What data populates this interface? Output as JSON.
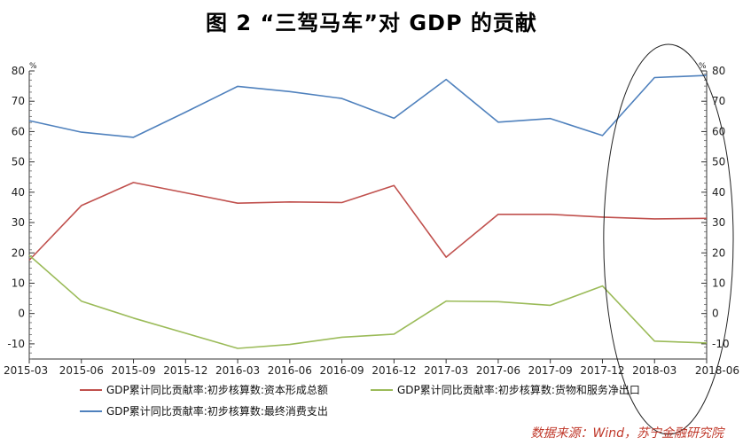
{
  "chart_data": {
    "type": "line",
    "title": "图 2 “三驾马车”对 GDP 的贡献",
    "unit_left": "%",
    "unit_right": "%",
    "categories": [
      "2015-03",
      "2015-06",
      "2015-09",
      "2015-12",
      "2016-03",
      "2016-06",
      "2016-09",
      "2016-12",
      "2017-03",
      "2017-06",
      "2017-09",
      "2017-12",
      "2018-03",
      "2018-06"
    ],
    "ylim": [
      -15,
      80
    ],
    "yticks": [
      80,
      70,
      60,
      50,
      40,
      30,
      20,
      10,
      0,
      -10
    ],
    "ytick_labels": [
      "80",
      "70",
      "60",
      "50",
      "40",
      "30",
      "20",
      "10",
      "0",
      "-10"
    ],
    "series": [
      {
        "name": "GDP累计同比贡献率:初步核算数:资本形成总额",
        "color": "#c0504d",
        "values": [
          17.6,
          35.6,
          43.2,
          39.8,
          36.4,
          36.8,
          36.6,
          42.2,
          18.6,
          32.7,
          32.7,
          31.8,
          31.2,
          31.4
        ]
      },
      {
        "name": "GDP累计同比贡献率:初步核算数:货物和服务净出口",
        "color": "#9bbb59",
        "values": [
          19.2,
          4.1,
          -1.5,
          -6.5,
          -11.5,
          -10.2,
          -7.8,
          -6.8,
          4.1,
          3.9,
          2.7,
          9.1,
          -9.1,
          -9.7
        ]
      },
      {
        "name": "GDP累计同比贡献率:初步核算数:最终消费支出",
        "color": "#4f81bd",
        "values": [
          63.6,
          59.8,
          58.1,
          66.4,
          74.9,
          73.2,
          70.9,
          64.4,
          77.2,
          63.1,
          64.3,
          58.7,
          77.8,
          78.5
        ]
      }
    ],
    "annotation": "ellipse-highlight-2017-12-to-2018-06",
    "legend_position": "bottom"
  },
  "source_text": "数据来源：Wind，苏宁金融研究院"
}
